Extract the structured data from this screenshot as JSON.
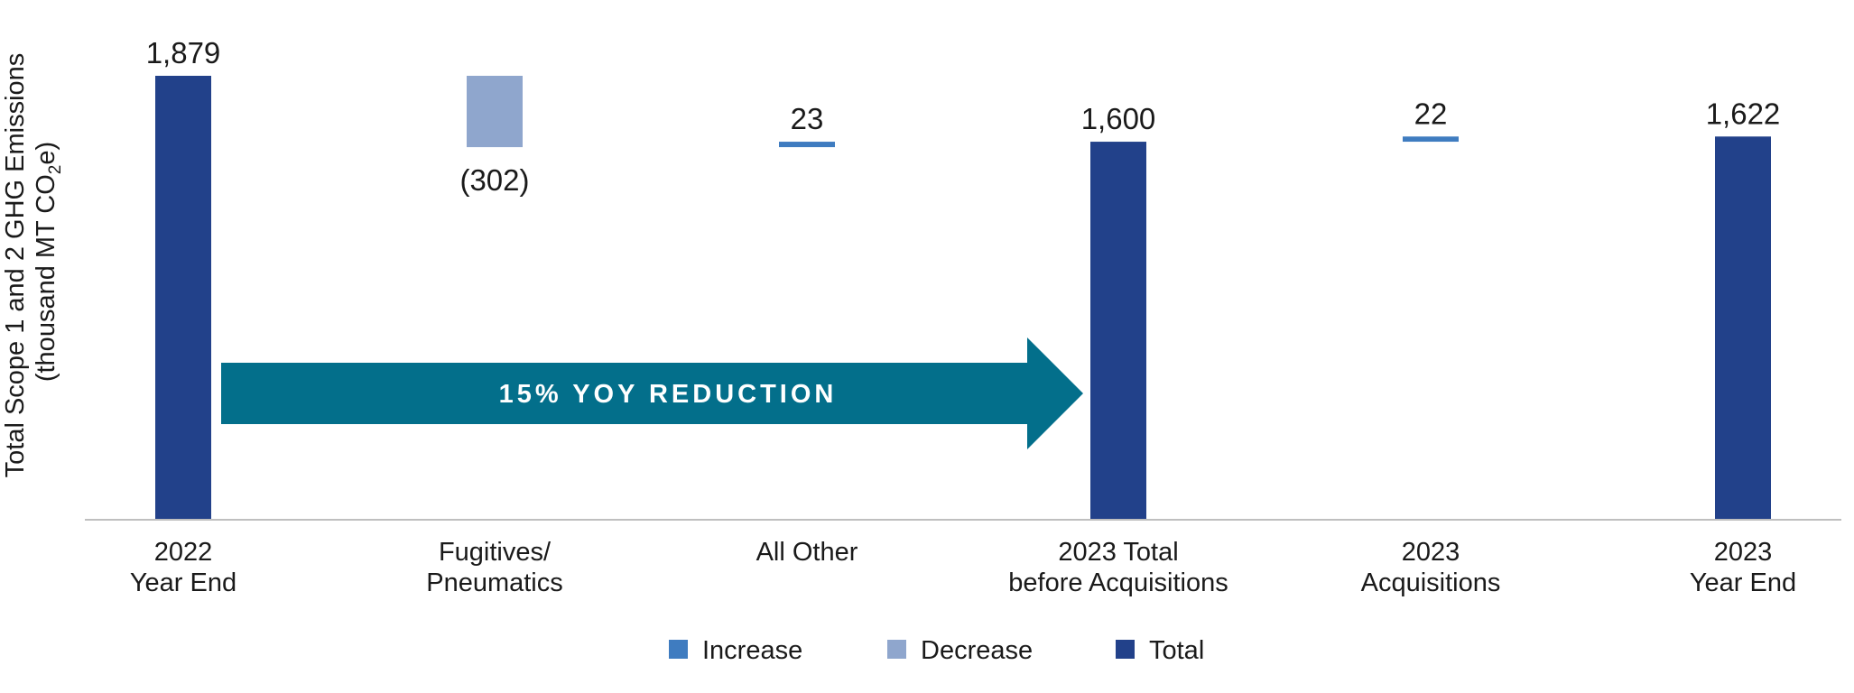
{
  "chart_data": {
    "type": "waterfall",
    "ylabel_line1": "Total Scope 1 and 2 GHG Emissions",
    "ylabel_line2_prefix": "(thousand MT CO",
    "ylabel_line2_sub": "2",
    "ylabel_line2_suffix": "e)",
    "ylim": [
      0,
      1879
    ],
    "categories": [
      {
        "line1": "2022",
        "line2": "Year End"
      },
      {
        "line1": "Fugitives/",
        "line2": "Pneumatics"
      },
      {
        "line1": "All Other",
        "line2": ""
      },
      {
        "line1": "2023 Total",
        "line2": "before Acquisitions"
      },
      {
        "line1": "2023",
        "line2": "Acquisitions"
      },
      {
        "line1": "2023",
        "line2": "Year End"
      }
    ],
    "bars": [
      {
        "kind": "total",
        "start": 0,
        "end": 1879,
        "label": "1,879"
      },
      {
        "kind": "decrease",
        "start": 1879,
        "end": 1577,
        "label": "(302)"
      },
      {
        "kind": "increase",
        "start": 1577,
        "end": 1600,
        "label": "23"
      },
      {
        "kind": "total",
        "start": 0,
        "end": 1600,
        "label": "1,600"
      },
      {
        "kind": "increase",
        "start": 1600,
        "end": 1622,
        "label": "22"
      },
      {
        "kind": "total",
        "start": 0,
        "end": 1622,
        "label": "1,622"
      }
    ],
    "annotation": "15% YOY REDUCTION",
    "legend": [
      {
        "kind": "increase",
        "label": "Increase"
      },
      {
        "kind": "decrease",
        "label": "Decrease"
      },
      {
        "kind": "total",
        "label": "Total"
      }
    ],
    "colors": {
      "increase": "#3f7cc0",
      "decrease": "#8fa6cd",
      "total": "#22418a",
      "arrow": "#036f8b",
      "axis": "#bfbfbf"
    }
  }
}
